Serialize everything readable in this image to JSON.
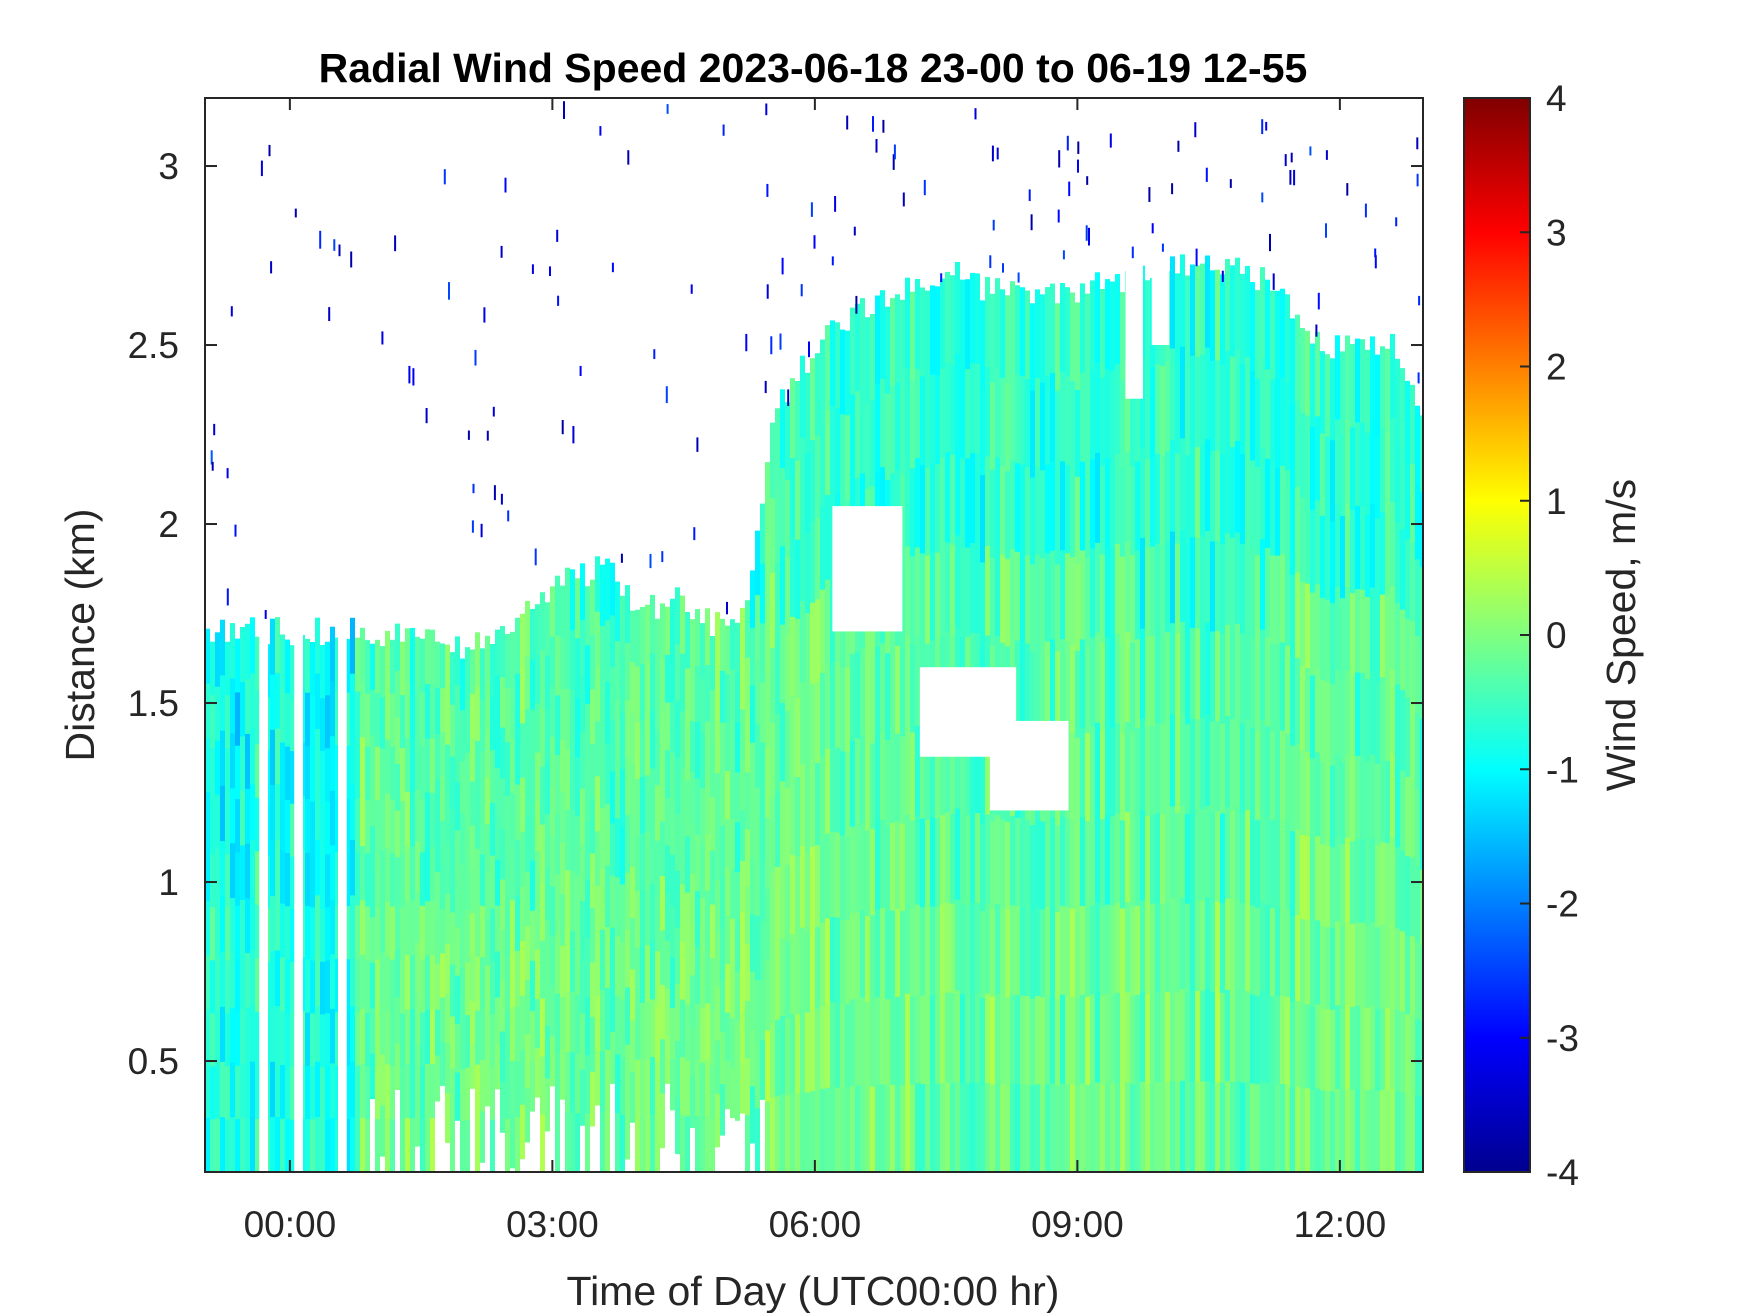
{
  "chart_data": {
    "type": "heatmap",
    "title": "Radial Wind Speed 2023-06-18 23-00 to 06-19 12-55",
    "xlabel": "Time of Day (UTC00:00 hr)",
    "ylabel": "Distance (km)",
    "x_unit": "hours relative to 2023-06-19 00:00 UTC",
    "xlim": [
      -0.97,
      12.95
    ],
    "ylim": [
      0.19,
      3.19
    ],
    "x_ticks": [
      0,
      3,
      6,
      9,
      12
    ],
    "x_tick_labels": [
      "00:00",
      "03:00",
      "06:00",
      "09:00",
      "12:00"
    ],
    "y_ticks": [
      0.5,
      1,
      1.5,
      2,
      2.5,
      3
    ],
    "y_tick_labels": [
      "0.5",
      "1",
      "1.5",
      "2",
      "2.5",
      "3"
    ],
    "colorbar": {
      "label": "Wind Speed, m/s",
      "colormap": "jet",
      "clim": [
        -4,
        4
      ],
      "ticks": [
        -4,
        -3,
        -2,
        -1,
        0,
        1,
        2,
        3,
        4
      ],
      "tick_labels": [
        "-4",
        "-3",
        "-2",
        "-1",
        "0",
        "1",
        "2",
        "3",
        "4"
      ]
    },
    "typical_value": -0.3,
    "coverage_top_km": [
      {
        "time": -0.97,
        "top": 1.7
      },
      {
        "time": 0.8,
        "top": 1.7
      },
      {
        "time": 2.0,
        "top": 1.65
      },
      {
        "time": 2.6,
        "top": 1.75
      },
      {
        "time": 3.2,
        "top": 1.85
      },
      {
        "time": 3.6,
        "top": 1.88
      },
      {
        "time": 4.0,
        "top": 1.75
      },
      {
        "time": 4.4,
        "top": 1.8
      },
      {
        "time": 4.8,
        "top": 1.72
      },
      {
        "time": 5.2,
        "top": 1.75
      },
      {
        "time": 5.5,
        "top": 2.3
      },
      {
        "time": 6.0,
        "top": 2.5
      },
      {
        "time": 6.5,
        "top": 2.6
      },
      {
        "time": 7.0,
        "top": 2.65
      },
      {
        "time": 7.6,
        "top": 2.7
      },
      {
        "time": 8.0,
        "top": 2.65
      },
      {
        "time": 9.0,
        "top": 2.65
      },
      {
        "time": 10.0,
        "top": 2.72
      },
      {
        "time": 11.0,
        "top": 2.7
      },
      {
        "time": 11.8,
        "top": 2.5
      },
      {
        "time": 12.6,
        "top": 2.5
      },
      {
        "time": 12.95,
        "top": 2.25
      }
    ]
  }
}
